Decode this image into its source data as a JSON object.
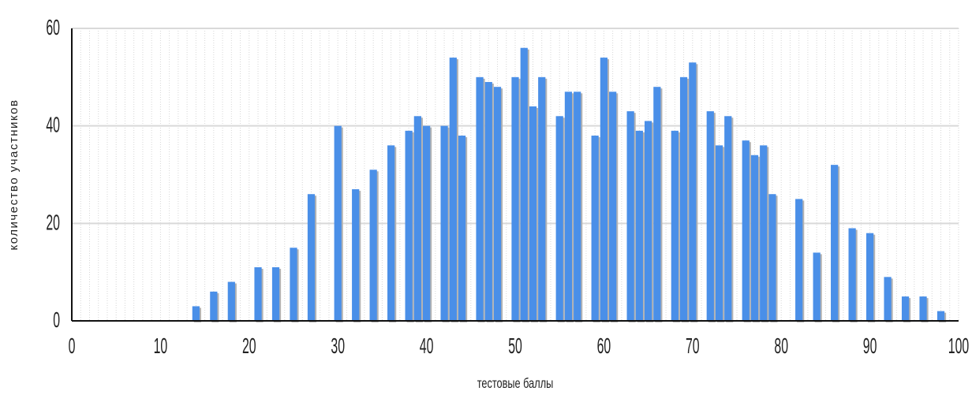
{
  "chart_data": {
    "type": "bar",
    "xlabel": "тестовые баллы",
    "ylabel": "количество участников",
    "xlim": [
      0,
      100
    ],
    "ylim": [
      0,
      60
    ],
    "x_ticks": [
      "0",
      "10",
      "20",
      "30",
      "40",
      "50",
      "60",
      "70",
      "80",
      "90",
      "100"
    ],
    "y_ticks": [
      "0",
      "20",
      "40",
      "60"
    ],
    "grid": "vertical dotted every 1, horizontal solid every 20",
    "bar_color": "#4a8fe8",
    "points": [
      {
        "x": 14,
        "y": 3
      },
      {
        "x": 16,
        "y": 6
      },
      {
        "x": 18,
        "y": 8
      },
      {
        "x": 21,
        "y": 11
      },
      {
        "x": 23,
        "y": 11
      },
      {
        "x": 25,
        "y": 15
      },
      {
        "x": 27,
        "y": 26
      },
      {
        "x": 30,
        "y": 40
      },
      {
        "x": 32,
        "y": 27
      },
      {
        "x": 34,
        "y": 31
      },
      {
        "x": 36,
        "y": 36
      },
      {
        "x": 38,
        "y": 39
      },
      {
        "x": 39,
        "y": 42
      },
      {
        "x": 40,
        "y": 40
      },
      {
        "x": 42,
        "y": 40
      },
      {
        "x": 43,
        "y": 54
      },
      {
        "x": 44,
        "y": 38
      },
      {
        "x": 46,
        "y": 50
      },
      {
        "x": 47,
        "y": 49
      },
      {
        "x": 48,
        "y": 48
      },
      {
        "x": 50,
        "y": 50
      },
      {
        "x": 51,
        "y": 56
      },
      {
        "x": 52,
        "y": 44
      },
      {
        "x": 53,
        "y": 50
      },
      {
        "x": 55,
        "y": 42
      },
      {
        "x": 56,
        "y": 47
      },
      {
        "x": 57,
        "y": 47
      },
      {
        "x": 59,
        "y": 38
      },
      {
        "x": 60,
        "y": 54
      },
      {
        "x": 61,
        "y": 47
      },
      {
        "x": 63,
        "y": 43
      },
      {
        "x": 64,
        "y": 39
      },
      {
        "x": 65,
        "y": 41
      },
      {
        "x": 66,
        "y": 48
      },
      {
        "x": 68,
        "y": 39
      },
      {
        "x": 69,
        "y": 50
      },
      {
        "x": 70,
        "y": 53
      },
      {
        "x": 72,
        "y": 43
      },
      {
        "x": 73,
        "y": 36
      },
      {
        "x": 74,
        "y": 42
      },
      {
        "x": 76,
        "y": 37
      },
      {
        "x": 77,
        "y": 34
      },
      {
        "x": 78,
        "y": 36
      },
      {
        "x": 79,
        "y": 26
      },
      {
        "x": 82,
        "y": 25
      },
      {
        "x": 84,
        "y": 14
      },
      {
        "x": 86,
        "y": 32
      },
      {
        "x": 88,
        "y": 19
      },
      {
        "x": 90,
        "y": 18
      },
      {
        "x": 92,
        "y": 9
      },
      {
        "x": 94,
        "y": 5
      },
      {
        "x": 96,
        "y": 5
      },
      {
        "x": 98,
        "y": 2
      }
    ]
  }
}
